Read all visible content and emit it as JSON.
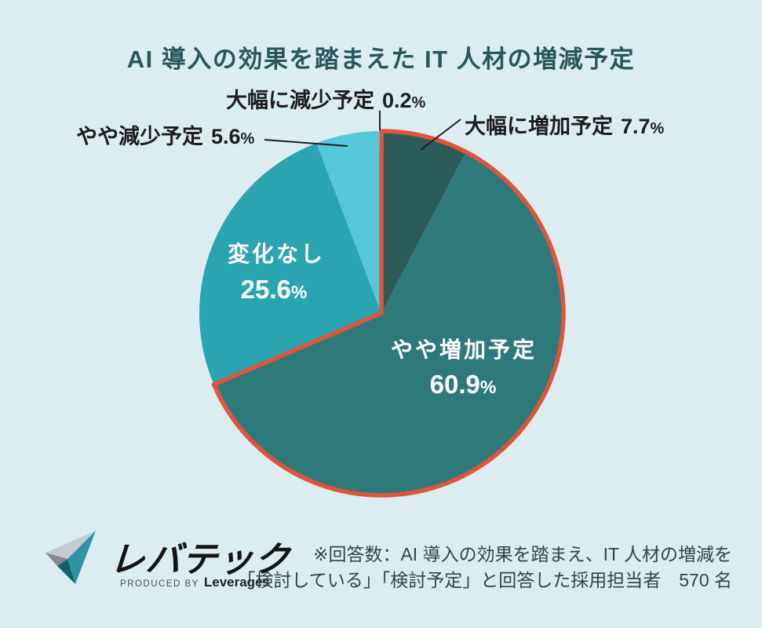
{
  "title": "AI 導入の効果を踏まえた IT 人材の増減予定",
  "chart_data": {
    "type": "pie",
    "title": "AI 導入の効果を踏まえた IT 人材の増減予定",
    "unit": "%",
    "start_angle_deg": 0,
    "direction": "clockwise",
    "slices": [
      {
        "label": "大幅に増加予定",
        "value": 7.7,
        "color": "#2B5C59",
        "label_position": "outside-right"
      },
      {
        "label": "やや増加予定",
        "value": 60.9,
        "color": "#2E7A7A",
        "label_position": "inside"
      },
      {
        "label": "変化なし",
        "value": 25.6,
        "color": "#2BA4B1",
        "label_position": "inside"
      },
      {
        "label": "やや減少予定",
        "value": 5.6,
        "color": "#56C8D8",
        "label_position": "outside-left"
      },
      {
        "label": "大幅に減少予定",
        "value": 0.2,
        "color": "#EEF7F9",
        "label_position": "outside-top"
      }
    ],
    "highlight_outline": {
      "color": "#E0543C",
      "slice_indices": [
        0,
        1
      ],
      "description": "red outline drawn around the combined increase slices"
    },
    "legend": "none",
    "background": "#DCEDF1"
  },
  "footer": {
    "logo": {
      "brand": "レバテック",
      "produced_by": "PRODUCED BY",
      "company": "Leverages"
    },
    "note_line1": "※回答数：AI 導入の効果を踏まえ、IT 人材の増減を",
    "note_line2": "「検討している」「検討予定」と回答した採用担当者　570 名"
  },
  "colors": {
    "background": "#DCEDF1",
    "title": "#26585C",
    "outside_label_text": "#1D1D1F",
    "inside_label_text": "#FFFFFF",
    "note_text": "#33454B",
    "highlight": "#E0543C"
  }
}
